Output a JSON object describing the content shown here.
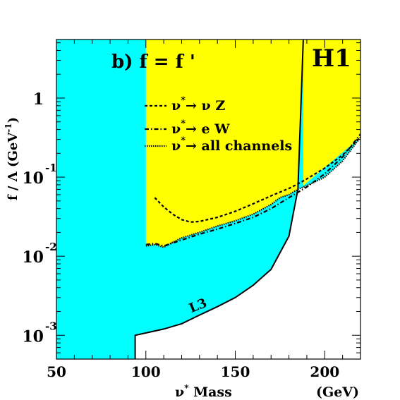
{
  "chart_data": {
    "type": "line",
    "panel_label": "b) f = f '",
    "experiment_label": "H1",
    "xlabel": {
      "main": "ν",
      "sup": "*",
      "rest": " Mass"
    },
    "xunit": "(GeV)",
    "ylabel": {
      "main": "f / Λ (GeV",
      "sup": "-1",
      "rest": ")"
    },
    "xlim": [
      50,
      220
    ],
    "ylim": [
      0.0005,
      5.5
    ],
    "yscale": "log",
    "x_ticks": [
      "50",
      "100",
      "150",
      "200"
    ],
    "y_ticks": [
      {
        "base": "10",
        "exp": "-3",
        "value": 0.001
      },
      {
        "base": "10",
        "exp": "-2",
        "value": 0.01
      },
      {
        "base": "10",
        "exp": "-1",
        "value": 0.1
      },
      {
        "base": "1",
        "exp": "",
        "value": 1
      }
    ],
    "colors": {
      "excluded_h1": "#ffff00",
      "excluded_l3": "#00ffff",
      "curves": "#000000"
    },
    "legend": [
      {
        "prefix": "ν",
        "sup": "*",
        "arrow": "→",
        "text": " ν Z",
        "style": "dashed"
      },
      {
        "prefix": "ν",
        "sup": "*",
        "arrow": "→",
        "text": " e W",
        "style": "dash-dot"
      },
      {
        "prefix": "ν",
        "sup": "*",
        "arrow": "→",
        "text": " all channels",
        "style": "dotted"
      }
    ],
    "series": [
      {
        "name": "ν* → ν Z",
        "style": "dashed",
        "x": [
          105,
          110,
          115,
          120,
          125,
          130,
          140,
          150,
          160,
          170,
          180,
          185,
          190,
          200,
          210,
          220
        ],
        "y": [
          0.055,
          0.042,
          0.034,
          0.029,
          0.027,
          0.0275,
          0.031,
          0.037,
          0.046,
          0.058,
          0.072,
          0.082,
          0.095,
          0.13,
          0.19,
          0.32
        ]
      },
      {
        "name": "ν* → e W",
        "style": "dash-dot",
        "x": [
          100,
          105,
          110,
          120,
          130,
          140,
          150,
          160,
          170,
          180,
          190,
          200,
          210,
          220
        ],
        "y": [
          0.014,
          0.0145,
          0.0135,
          0.016,
          0.019,
          0.022,
          0.026,
          0.031,
          0.04,
          0.055,
          0.075,
          0.11,
          0.18,
          0.35
        ]
      },
      {
        "name": "ν* → all channels",
        "style": "dotted",
        "x": [
          100,
          105,
          110,
          115,
          120,
          130,
          140,
          150,
          160,
          170,
          175,
          180,
          185,
          190,
          200,
          210,
          220
        ],
        "y": [
          0.0135,
          0.014,
          0.013,
          0.015,
          0.017,
          0.02,
          0.024,
          0.028,
          0.034,
          0.045,
          0.055,
          0.06,
          0.07,
          0.078,
          0.1,
          0.16,
          0.32
        ]
      },
      {
        "name": "L3",
        "style": "solid",
        "x": [
          94,
          94,
          110,
          120,
          130,
          140,
          150,
          160,
          170,
          180,
          185,
          188
        ],
        "y": [
          0.0005,
          0.001,
          0.0012,
          0.0014,
          0.0018,
          0.0023,
          0.003,
          0.0043,
          0.0068,
          0.018,
          0.07,
          5.5
        ]
      }
    ]
  }
}
